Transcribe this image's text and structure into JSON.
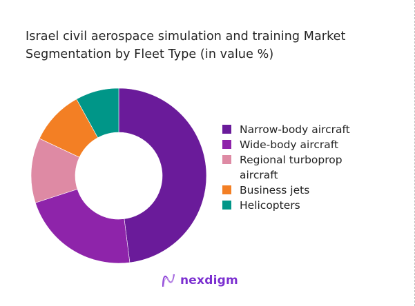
{
  "title": "Israel civil aerospace simulation and training Market Segmentation by Fleet Type (in value %)",
  "legend": [
    {
      "label": "Narrow-body aircraft",
      "color": "#6a1b9a"
    },
    {
      "label": "Wide-body aircraft",
      "color": "#8e24aa"
    },
    {
      "label": "Regional turboprop aircraft",
      "color": "#de8aa4"
    },
    {
      "label": "Business jets",
      "color": "#f37f24"
    },
    {
      "label": "Helicopters",
      "color": "#009688"
    }
  ],
  "logo": {
    "text": "nexdigm"
  },
  "chart_data": {
    "type": "pie",
    "subtype": "donut",
    "title": "Israel civil aerospace simulation and training Market Segmentation by Fleet Type (in value %)",
    "categories": [
      "Narrow-body aircraft",
      "Wide-body aircraft",
      "Regional turboprop aircraft",
      "Business jets",
      "Helicopters"
    ],
    "values": [
      48,
      22,
      12,
      10,
      8
    ],
    "colors": [
      "#6a1b9a",
      "#8e24aa",
      "#de8aa4",
      "#f37f24",
      "#009688"
    ],
    "unit": "%",
    "start_angle_deg": 0,
    "direction": "clockwise",
    "legend_position": "right",
    "data_labels": false
  }
}
